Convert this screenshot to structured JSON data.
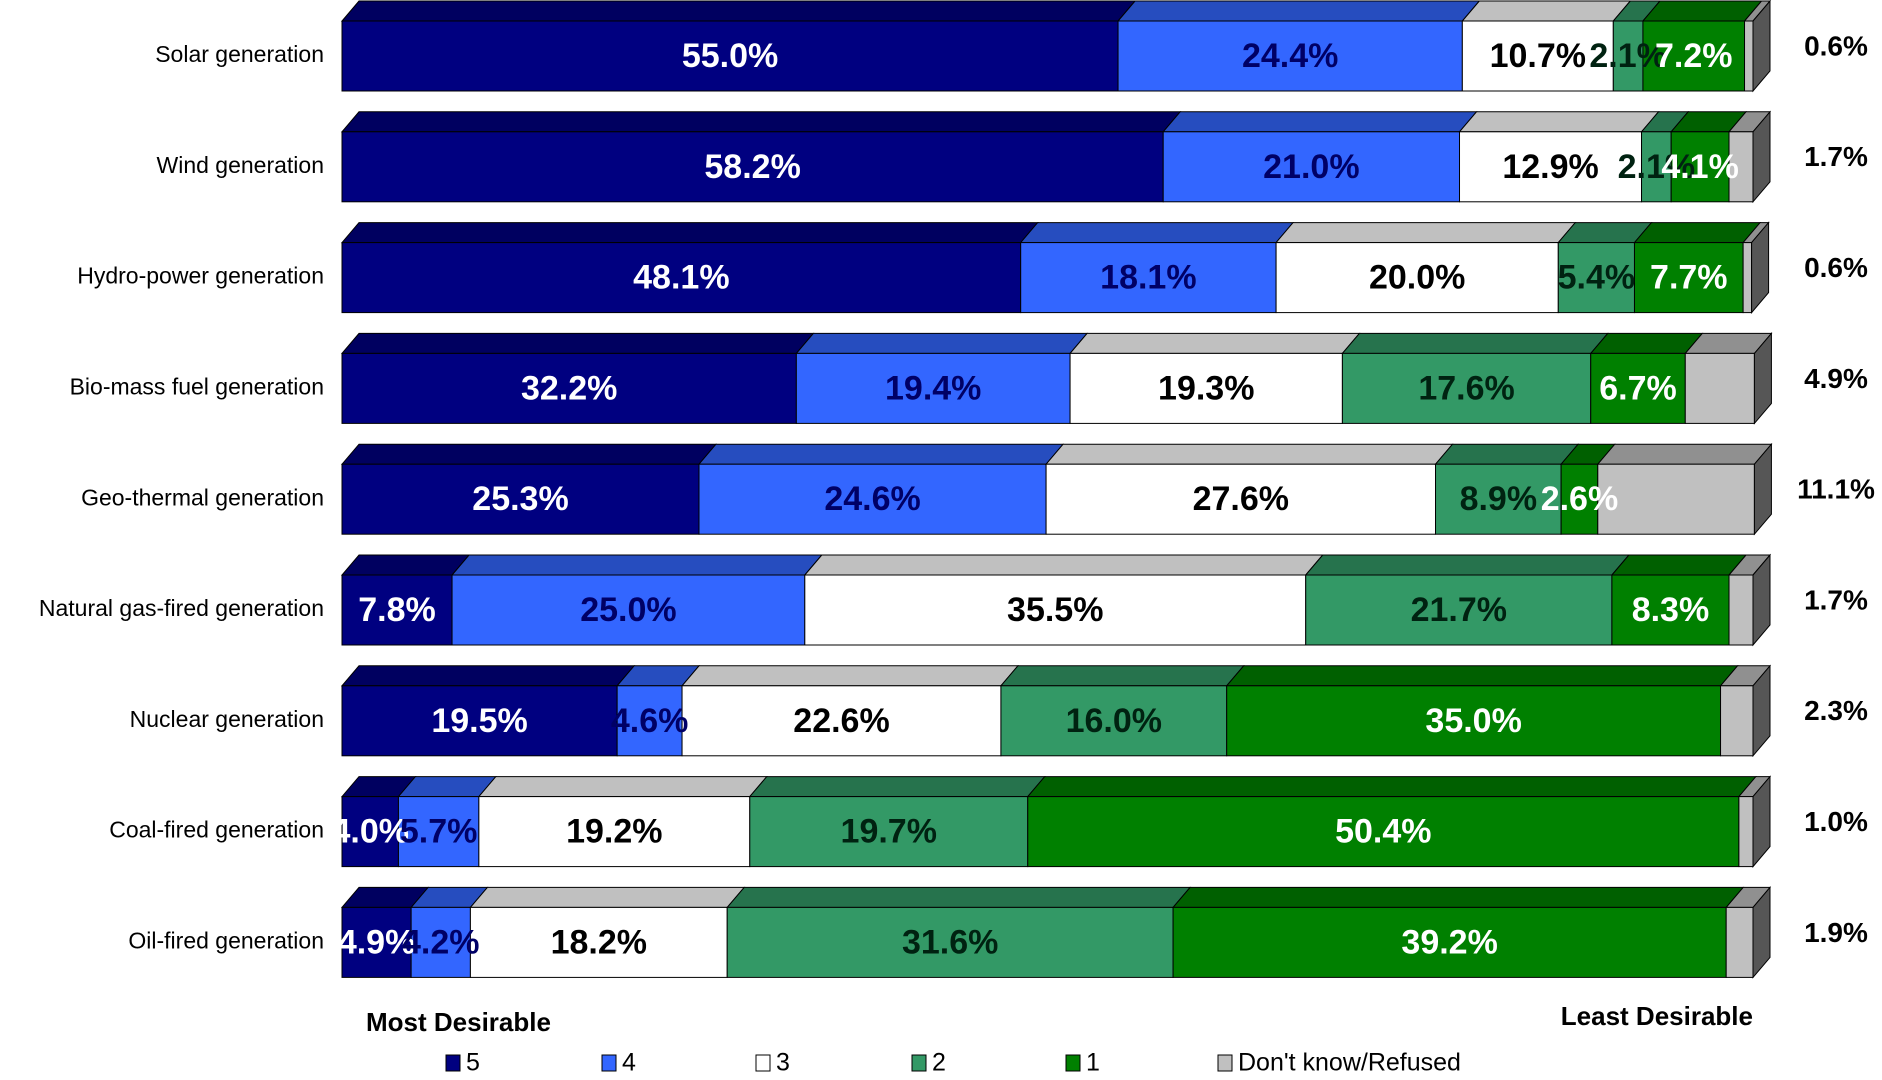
{
  "chart_data": {
    "type": "stacked-bar-3d",
    "categories": [
      "Solar generation",
      "Wind generation",
      "Hydro-power generation",
      "Bio-mass fuel generation",
      "Geo-thermal generation",
      "Natural gas-fired generation",
      "Nuclear generation",
      "Coal-fired generation",
      "Oil-fired generation"
    ],
    "xlim": [
      0,
      100
    ],
    "annotations": [
      "Most Desirable",
      "Least Desirable"
    ],
    "series": [
      {
        "name": "5",
        "color": "#000080",
        "label_color": "#ffffff",
        "values": [
          55.0,
          58.2,
          48.1,
          32.2,
          25.3,
          7.8,
          19.5,
          4.0,
          4.9
        ],
        "value_labels": [
          "55.0%",
          "58.2%",
          "48.1%",
          "32.2%",
          "25.3%",
          "7.8%",
          "19.5%",
          "4.0%",
          "4.9%"
        ]
      },
      {
        "name": "4",
        "color": "#3366ff",
        "label_color": "#000066",
        "values": [
          24.4,
          21.0,
          18.1,
          19.4,
          24.6,
          25.0,
          4.6,
          5.7,
          4.2
        ],
        "value_labels": [
          "24.4%",
          "21.0%",
          "18.1%",
          "19.4%",
          "24.6%",
          "25.0%",
          "4.6%",
          "5.7%",
          "4.2%"
        ]
      },
      {
        "name": "3",
        "color": "#ffffff",
        "label_color": "#000000",
        "values": [
          10.7,
          12.9,
          20.0,
          19.3,
          27.6,
          35.5,
          22.6,
          19.2,
          18.2
        ],
        "value_labels": [
          "10.7%",
          "12.9%",
          "20.0%",
          "19.3%",
          "27.6%",
          "35.5%",
          "22.6%",
          "19.2%",
          "18.2%"
        ]
      },
      {
        "name": "2",
        "color": "#339966",
        "label_color": "#002211",
        "values": [
          2.1,
          2.1,
          5.4,
          17.6,
          8.9,
          21.7,
          16.0,
          19.7,
          31.6
        ],
        "value_labels": [
          "2.1%",
          "2.1%",
          "5.4%",
          "17.6%",
          "8.9%",
          "21.7%",
          "16.0%",
          "19.7%",
          "31.6%"
        ]
      },
      {
        "name": "1",
        "color": "#008000",
        "label_color": "#ffffff",
        "values": [
          7.2,
          4.1,
          7.7,
          6.7,
          2.6,
          8.3,
          35.0,
          50.4,
          39.2
        ],
        "value_labels": [
          "7.2%",
          "4.1%",
          "7.7%",
          "6.7%",
          "2.6%",
          "8.3%",
          "35.0%",
          "50.4%",
          "39.2%"
        ]
      },
      {
        "name": "Don't know/Refused",
        "color": "#c0c0c0",
        "label_outside": true,
        "values": [
          0.6,
          1.7,
          0.6,
          4.9,
          11.1,
          1.7,
          2.3,
          1.0,
          1.9
        ],
        "value_labels": [
          "0.6%",
          "1.7%",
          "0.6%",
          "4.9%",
          "11.1%",
          "1.7%",
          "2.3%",
          "1.0%",
          "1.9%"
        ]
      }
    ]
  }
}
